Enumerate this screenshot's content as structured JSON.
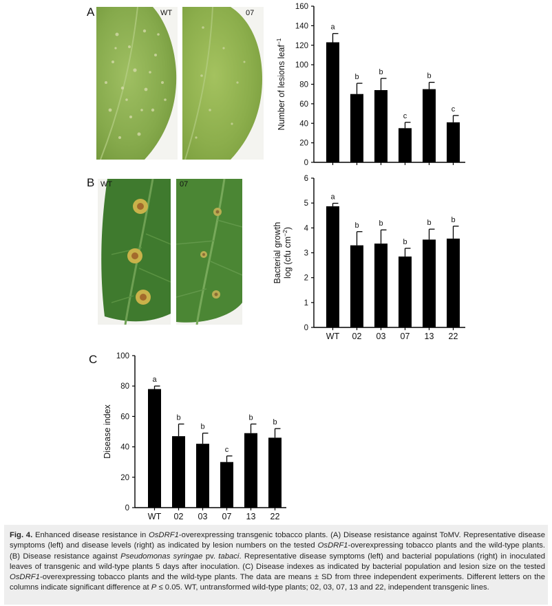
{
  "panels": {
    "a": {
      "letter": "A",
      "left_label": "WT",
      "right_label": "07"
    },
    "b": {
      "letter": "B",
      "left_label": "WT",
      "right_label": "07"
    },
    "c": {
      "letter": "C"
    }
  },
  "chart_data": [
    {
      "type": "bar",
      "panel": "A",
      "categories": [
        "WT",
        "02",
        "03",
        "07",
        "13",
        "22"
      ],
      "values": [
        123,
        70,
        74,
        35,
        75,
        41
      ],
      "errors": [
        9,
        11,
        12,
        6,
        7,
        7
      ],
      "letters": [
        "a",
        "b",
        "b",
        "c",
        "b",
        "c"
      ],
      "ylabel_main": "Number of lesions leaf",
      "ylabel_sup": "−1",
      "ylim": [
        0,
        160
      ],
      "yticks": [
        "0",
        "20",
        "40",
        "60",
        "80",
        "100",
        "120",
        "140",
        "160"
      ],
      "show_xticklabels": false,
      "bar_color": "#000000"
    },
    {
      "type": "bar",
      "panel": "B",
      "categories": [
        "WT",
        "02",
        "03",
        "07",
        "13",
        "22"
      ],
      "values": [
        4.87,
        3.3,
        3.37,
        2.85,
        3.53,
        3.57
      ],
      "errors": [
        0.12,
        0.55,
        0.55,
        0.33,
        0.42,
        0.5
      ],
      "letters": [
        "a",
        "b",
        "b",
        "b",
        "b",
        "b"
      ],
      "ylabel_line1": "Bacterial growth",
      "ylabel_line2_main": "log (cfu cm",
      "ylabel_line2_sup": "−2",
      "ylabel_line2_end": ")",
      "ylim": [
        0,
        6
      ],
      "yticks": [
        "0",
        "1",
        "2",
        "3",
        "4",
        "5",
        "6"
      ],
      "show_xticklabels": true,
      "bar_color": "#000000"
    },
    {
      "type": "bar",
      "panel": "C",
      "categories": [
        "WT",
        "02",
        "03",
        "07",
        "13",
        "22"
      ],
      "values": [
        78,
        47,
        42,
        30,
        49,
        46
      ],
      "errors": [
        2,
        8,
        7,
        4,
        6,
        6
      ],
      "letters": [
        "a",
        "b",
        "b",
        "c",
        "b",
        "b"
      ],
      "ylabel": "Disease index",
      "ylim": [
        0,
        100
      ],
      "yticks": [
        "0",
        "20",
        "40",
        "60",
        "80",
        "100"
      ],
      "show_xticklabels": true,
      "bar_color": "#000000"
    }
  ],
  "caption": {
    "fig": "Fig. 4.",
    "s1": " Enhanced disease resistance in ",
    "g1": "OsDRF1",
    "s2": "-overexpressing transgenic tobacco plants. (A) Disease resistance against ToMV. Representative disease symptoms (left) and disease levels (right) as indicated by lesion numbers on the tested ",
    "g2": "OsDRF1",
    "s3": "-overexpressing tobacco plants and the wild-type plants. (B) Disease resistance against ",
    "sp": "Pseudomonas syringae",
    "s4": " pv. ",
    "pv": "tabaci",
    "s5": ". Representative disease symptoms (left) and bacterial populations (right) in inoculated leaves of transgenic and wild-type plants 5 days after inoculation. (C) Disease indexes as indicated by bacterial population and lesion size on the tested ",
    "g3": "OsDRF1",
    "s6": "-overexpressing tobacco plants and the wild-type plants. The data are means ± SD from three independent experiments. Different letters on the columns indicate significant difference at ",
    "p": "P",
    "s7": " ≤ 0.05. WT, untransformed wild-type plants; 02, 03, 07, 13 and 22, independent transgenic lines."
  }
}
